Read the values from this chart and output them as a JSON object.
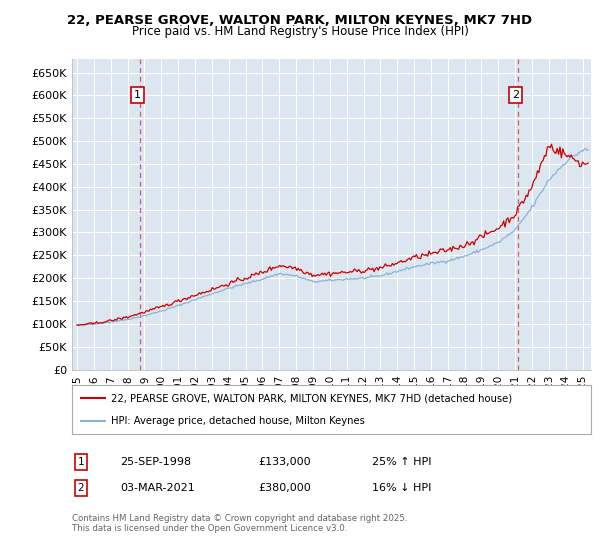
{
  "title_line1": "22, PEARSE GROVE, WALTON PARK, MILTON KEYNES, MK7 7HD",
  "title_line2": "Price paid vs. HM Land Registry's House Price Index (HPI)",
  "fig_bg_color": "#ffffff",
  "plot_bg_color": "#dce6f1",
  "grid_color": "#ffffff",
  "red_color": "#cc0000",
  "blue_color": "#8ab4d4",
  "annotation1_date": "25-SEP-1998",
  "annotation1_price": 133000,
  "annotation1_label": "25% ↑ HPI",
  "annotation2_date": "03-MAR-2021",
  "annotation2_price": 380000,
  "annotation2_label": "16% ↓ HPI",
  "legend_line1": "22, PEARSE GROVE, WALTON PARK, MILTON KEYNES, MK7 7HD (detached house)",
  "legend_line2": "HPI: Average price, detached house, Milton Keynes",
  "footer": "Contains HM Land Registry data © Crown copyright and database right 2025.\nThis data is licensed under the Open Government Licence v3.0.",
  "ylim": [
    0,
    680000
  ],
  "xlim_start": 1994.7,
  "xlim_end": 2025.5,
  "yticks": [
    0,
    50000,
    100000,
    150000,
    200000,
    250000,
    300000,
    350000,
    400000,
    450000,
    500000,
    550000,
    600000,
    650000
  ],
  "ytick_labels": [
    "£0",
    "£50K",
    "£100K",
    "£150K",
    "£200K",
    "£250K",
    "£300K",
    "£350K",
    "£400K",
    "£450K",
    "£500K",
    "£550K",
    "£600K",
    "£650K"
  ],
  "xticks": [
    1995,
    1996,
    1997,
    1998,
    1999,
    2000,
    2001,
    2002,
    2003,
    2004,
    2005,
    2006,
    2007,
    2008,
    2009,
    2010,
    2011,
    2012,
    2013,
    2014,
    2015,
    2016,
    2017,
    2018,
    2019,
    2020,
    2021,
    2022,
    2023,
    2024,
    2025
  ],
  "ann1_x": 1998.73,
  "ann1_y": 133000,
  "ann2_x": 2021.17,
  "ann2_y": 380000
}
